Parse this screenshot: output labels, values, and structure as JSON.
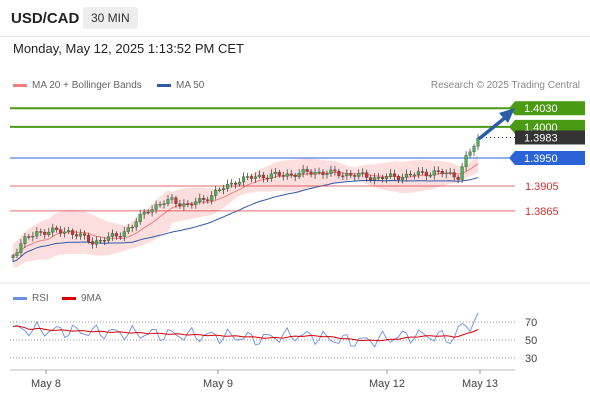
{
  "header": {
    "symbol": "USD/CAD",
    "timeframe": "30 MIN"
  },
  "datetime": "Monday, May 12, 2025 1:13:52 PM CET",
  "legend": {
    "ma20": {
      "label": "MA 20 + Bollinger Bands",
      "color": "#f08080"
    },
    "ma50": {
      "label": "MA 50",
      "color": "#2e5aa8"
    }
  },
  "credit": "Research © 2025 Trading Central",
  "levels": [
    {
      "value": 1.403,
      "label": "1.4030",
      "kind": "target",
      "color": "#4a9a14"
    },
    {
      "value": 1.4,
      "label": "1.4000",
      "kind": "target",
      "color": "#4a9a14"
    },
    {
      "value": 1.3983,
      "label": "1.3983",
      "kind": "last",
      "color": "#333333"
    },
    {
      "value": 1.395,
      "label": "1.3950",
      "kind": "pivot",
      "color": "#2a63d6"
    },
    {
      "value": 1.3905,
      "label": "1.3905",
      "kind": "support",
      "color": "#d43030"
    },
    {
      "value": 1.3865,
      "label": "1.3865",
      "kind": "support",
      "color": "#d43030"
    }
  ],
  "rsi": {
    "legend": [
      {
        "label": "RSI",
        "color": "#6b8fe0"
      },
      {
        "label": "9MA",
        "color": "#dd0000"
      }
    ],
    "ticks": [
      "70",
      "50",
      "30"
    ]
  },
  "x_axis": {
    "labels": [
      "May 8",
      "May 9",
      "May 12",
      "May 13"
    ]
  },
  "colors": {
    "up": "#4caf50",
    "down": "#d32f2f",
    "band": "#fbd3d3",
    "arrow": "#2a5ca8"
  }
}
